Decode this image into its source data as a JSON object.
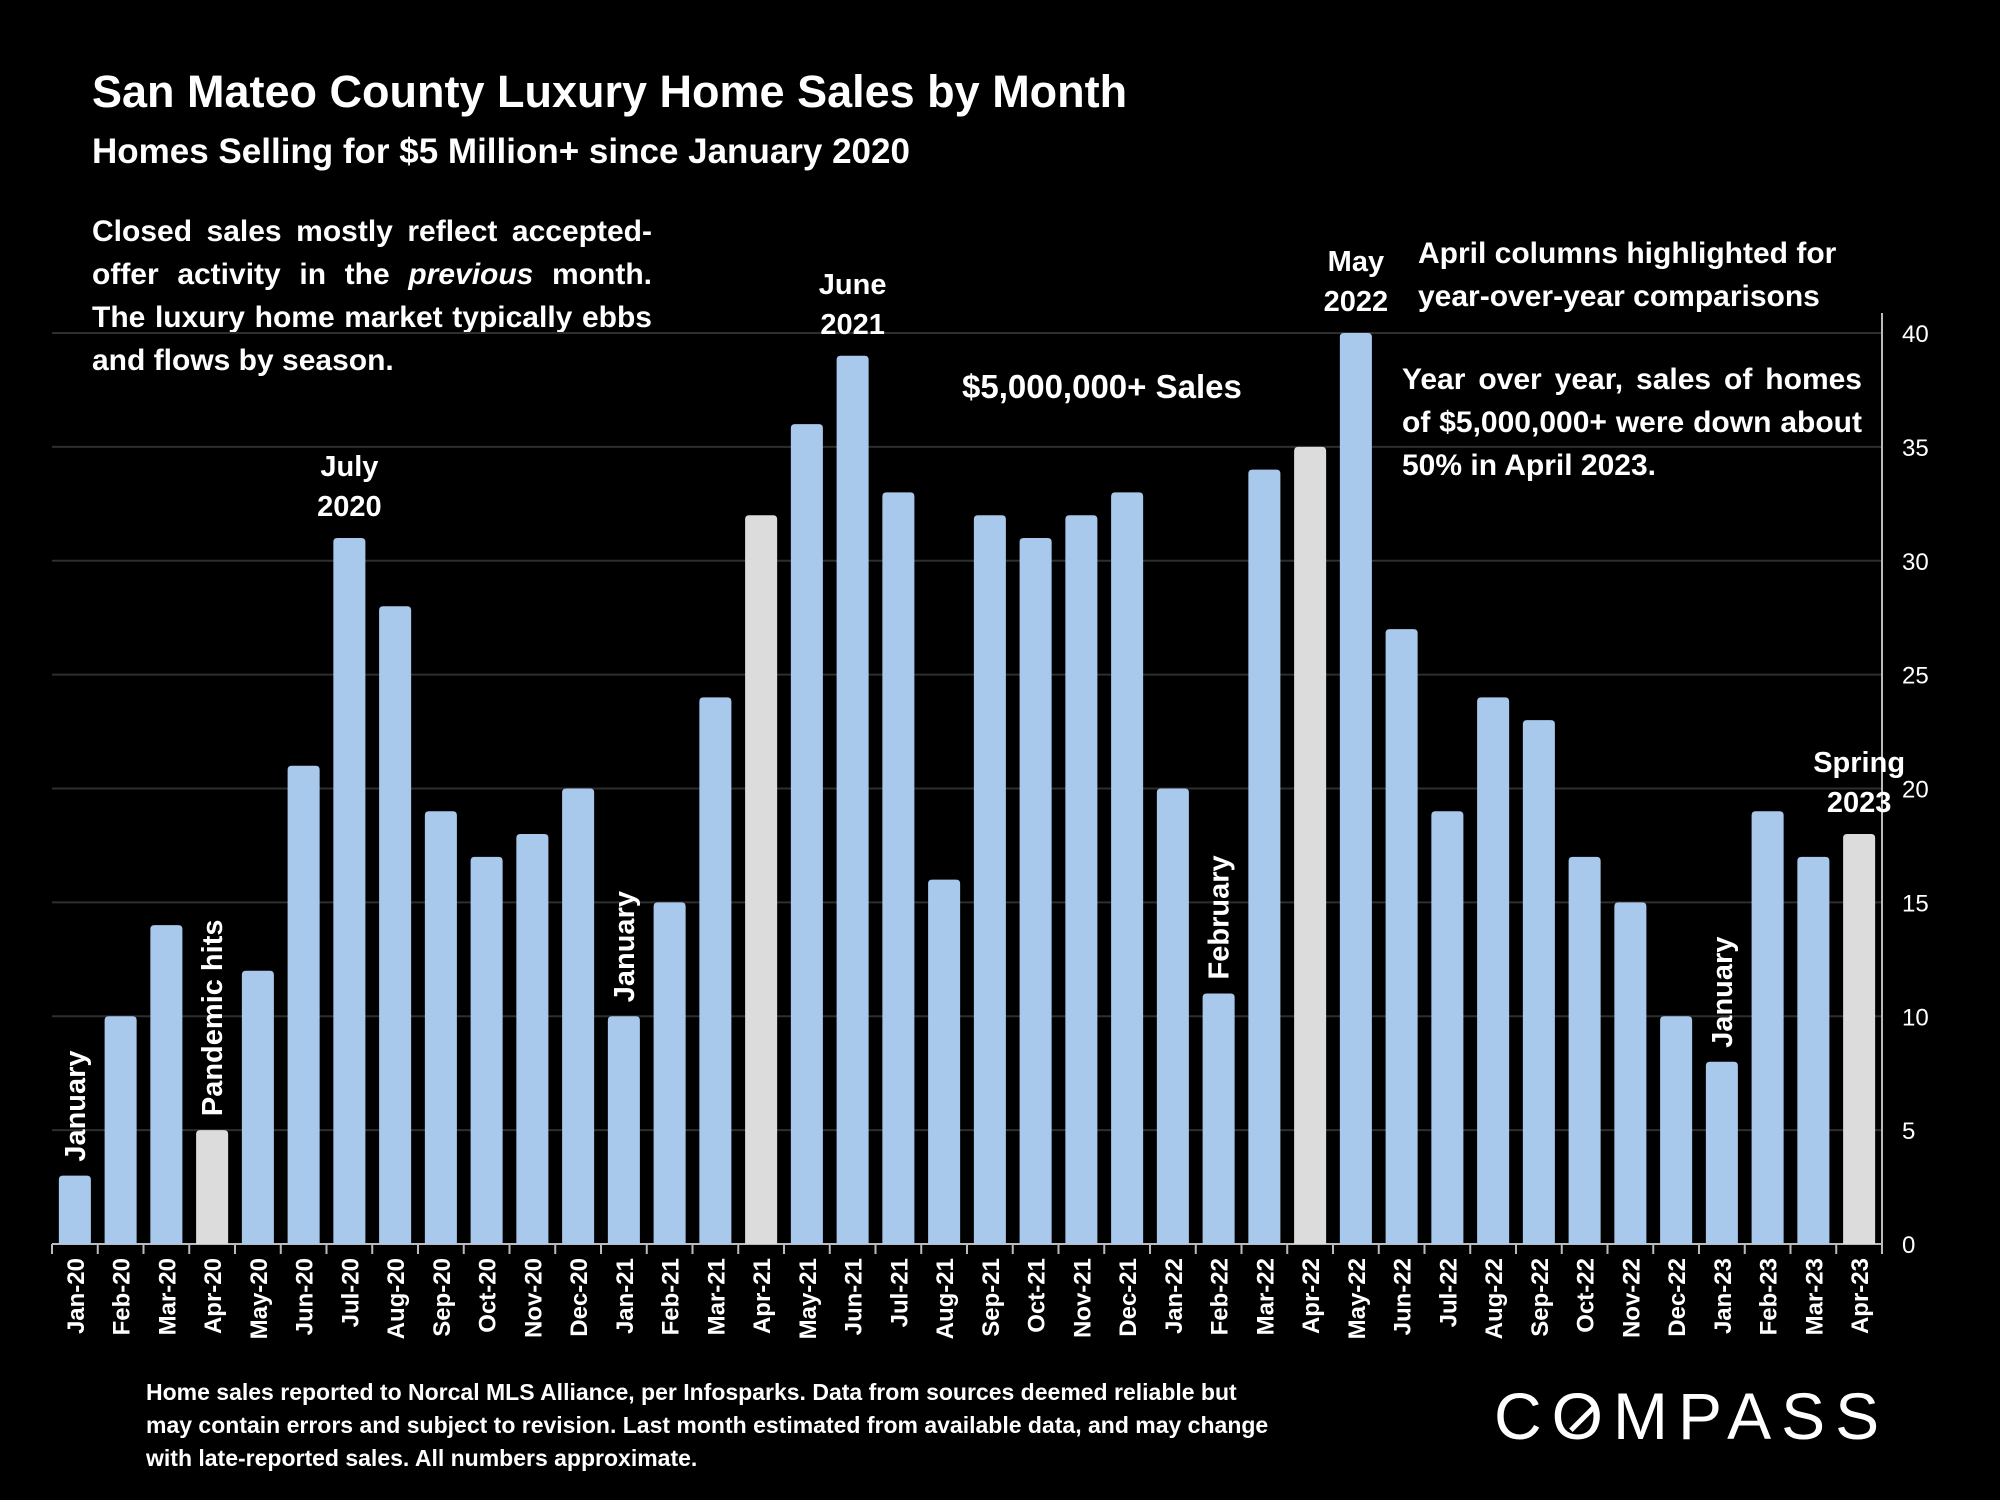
{
  "header": {
    "title": "San Mateo County Luxury Home Sales by Month",
    "subtitle": "Homes Selling for $5 Million+ since January 2020"
  },
  "notes": {
    "left_pre": "Closed sales mostly reflect accepted-offer activity in the ",
    "left_em": "previous",
    "left_post": " month. The luxury home market typically ebbs and flows by season.",
    "right_top_line1": "April columns highlighted for",
    "right_top_line2": "year-over-year comparisons",
    "right": "Year over year, sales of homes of $5,000,000+ were down about 50% in April 2023.",
    "series_label": "$5,000,000+ Sales"
  },
  "footnote": "Home sales reported to Norcal MLS Alliance, per Infosparks. Data from sources deemed reliable but may contain errors and subject to revision.  Last month estimated from available data, and may change with late-reported sales. All numbers approximate.",
  "logo": {
    "pre": "C",
    "o": "O",
    "post": "MPASS"
  },
  "colors": {
    "bar": "#a8c8ec",
    "highlight": "#dcdcdc",
    "grid": "#2e2e2e",
    "axis": "#bbbbbb"
  },
  "chart_data": {
    "type": "bar",
    "categories": [
      "Jan-20",
      "Feb-20",
      "Mar-20",
      "Apr-20",
      "May-20",
      "Jun-20",
      "Jul-20",
      "Aug-20",
      "Sep-20",
      "Oct-20",
      "Nov-20",
      "Dec-20",
      "Jan-21",
      "Feb-21",
      "Mar-21",
      "Apr-21",
      "May-21",
      "Jun-21",
      "Jul-21",
      "Aug-21",
      "Sep-21",
      "Oct-21",
      "Nov-21",
      "Dec-21",
      "Jan-22",
      "Feb-22",
      "Mar-22",
      "Apr-22",
      "May-22",
      "Jun-22",
      "Jul-22",
      "Aug-22",
      "Sep-22",
      "Oct-22",
      "Nov-22",
      "Dec-22",
      "Jan-23",
      "Feb-23",
      "Mar-23",
      "Apr-23"
    ],
    "values": [
      3,
      10,
      14,
      5,
      12,
      21,
      31,
      28,
      19,
      17,
      18,
      20,
      10,
      15,
      24,
      32,
      36,
      39,
      33,
      16,
      32,
      31,
      32,
      33,
      20,
      11,
      34,
      35,
      40,
      27,
      19,
      24,
      23,
      17,
      15,
      10,
      8,
      19,
      17,
      18
    ],
    "highlighted": [
      "Apr-20",
      "Apr-21",
      "Apr-22",
      "Apr-23"
    ],
    "ylim": [
      0,
      40
    ],
    "yticks": [
      0,
      5,
      10,
      15,
      20,
      25,
      30,
      35,
      40
    ],
    "y_axis_side": "right",
    "grid": true,
    "annotations": [
      {
        "category": "Jan-20",
        "text": "January",
        "orientation": "vertical"
      },
      {
        "category": "Apr-20",
        "text": "Pandemic hits",
        "orientation": "vertical"
      },
      {
        "category": "Jul-20",
        "lines": [
          "July",
          "2020"
        ],
        "orientation": "horizontal"
      },
      {
        "category": "Jan-21",
        "text": "January",
        "orientation": "vertical"
      },
      {
        "category": "Jun-21",
        "lines": [
          "June",
          "2021"
        ],
        "orientation": "horizontal"
      },
      {
        "category": "Feb-22",
        "text": "February",
        "orientation": "vertical"
      },
      {
        "category": "May-22",
        "lines": [
          "May",
          "2022"
        ],
        "orientation": "horizontal"
      },
      {
        "category": "Jan-23",
        "text": "January",
        "orientation": "vertical"
      },
      {
        "category": "Apr-23",
        "lines": [
          "Spring",
          "2023"
        ],
        "orientation": "horizontal"
      }
    ]
  }
}
